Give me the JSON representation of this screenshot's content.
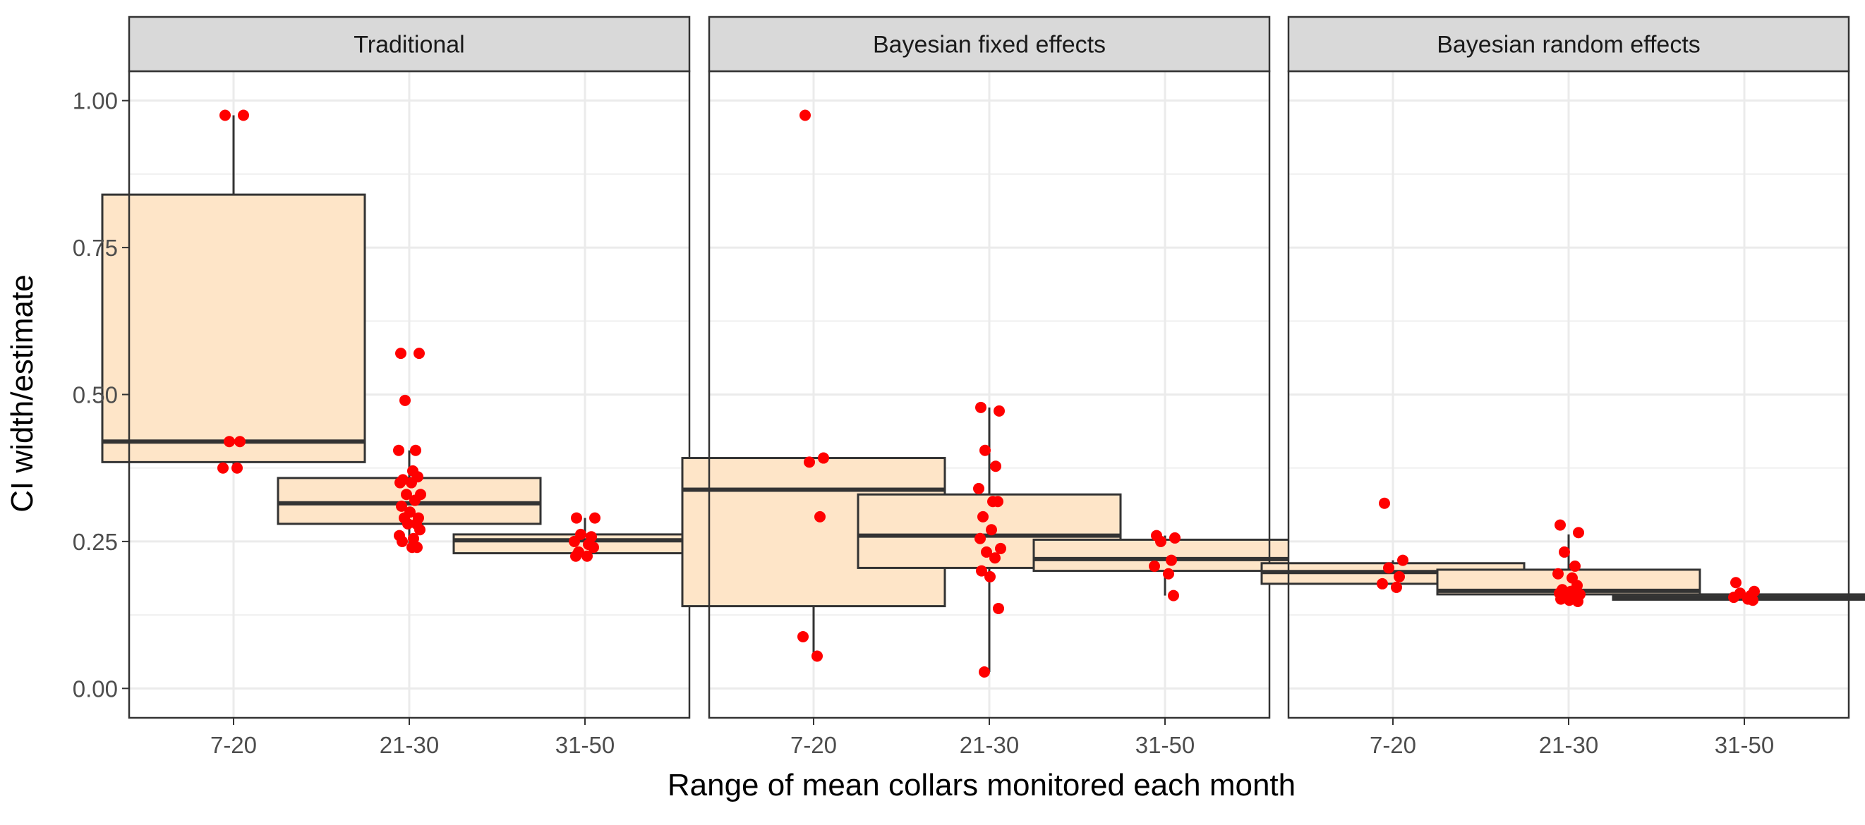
{
  "chart_data": {
    "type": "boxplot",
    "xlabel": "Range of mean collars monitored each month",
    "ylabel": "CI width/estimate",
    "ylim": [
      -0.05,
      1.05
    ],
    "y_ticks": [
      "0.00",
      "0.25",
      "0.50",
      "0.75",
      "1.00"
    ],
    "y_tick_values": [
      0,
      0.25,
      0.5,
      0.75,
      1.0
    ],
    "categories": [
      "7-20",
      "21-30",
      "31-50"
    ],
    "grid": true,
    "colors": {
      "box_fill": "#FEE5C8",
      "box_line": "#333333",
      "point": "#FF0000",
      "strip_fill": "#D9D9D9",
      "grid": "#EBEBEB"
    },
    "panels": [
      {
        "title": "Traditional",
        "boxes": [
          {
            "category": "7-20",
            "lower_whisker": 0.375,
            "q1": 0.385,
            "median": 0.42,
            "q3": 0.84,
            "upper_whisker": 0.975
          },
          {
            "category": "21-30",
            "lower_whisker": 0.24,
            "q1": 0.28,
            "median": 0.315,
            "q3": 0.358,
            "upper_whisker": 0.405
          },
          {
            "category": "31-50",
            "lower_whisker": 0.225,
            "q1": 0.23,
            "median": 0.252,
            "q3": 0.262,
            "upper_whisker": 0.29
          }
        ],
        "points": [
          {
            "category": "7-20",
            "values": [
              0.975,
              0.975,
              0.42,
              0.42,
              0.375,
              0.375
            ]
          },
          {
            "category": "21-30",
            "values": [
              0.57,
              0.57,
              0.49,
              0.405,
              0.405,
              0.37,
              0.36,
              0.355,
              0.35,
              0.35,
              0.33,
              0.33,
              0.32,
              0.31,
              0.3,
              0.29,
              0.29,
              0.28,
              0.28,
              0.27,
              0.26,
              0.255,
              0.25,
              0.24,
              0.24
            ]
          },
          {
            "category": "31-50",
            "values": [
              0.29,
              0.29,
              0.262,
              0.258,
              0.25,
              0.245,
              0.24,
              0.232,
              0.225,
              0.225
            ]
          }
        ]
      },
      {
        "title": "Bayesian fixed effects",
        "boxes": [
          {
            "category": "7-20",
            "lower_whisker": 0.055,
            "q1": 0.14,
            "median": 0.338,
            "q3": 0.392,
            "upper_whisker": 0.392
          },
          {
            "category": "21-30",
            "lower_whisker": 0.028,
            "q1": 0.205,
            "median": 0.26,
            "q3": 0.33,
            "upper_whisker": 0.478
          },
          {
            "category": "31-50",
            "lower_whisker": 0.158,
            "q1": 0.2,
            "median": 0.22,
            "q3": 0.253,
            "upper_whisker": 0.26
          }
        ],
        "points": [
          {
            "category": "7-20",
            "values": [
              0.975,
              0.392,
              0.385,
              0.292,
              0.088,
              0.055
            ]
          },
          {
            "category": "21-30",
            "values": [
              0.478,
              0.472,
              0.405,
              0.378,
              0.34,
              0.318,
              0.318,
              0.292,
              0.27,
              0.255,
              0.238,
              0.232,
              0.222,
              0.2,
              0.19,
              0.136,
              0.028
            ]
          },
          {
            "category": "31-50",
            "values": [
              0.26,
              0.256,
              0.25,
              0.218,
              0.208,
              0.195,
              0.158
            ]
          }
        ]
      },
      {
        "title": "Bayesian random effects",
        "boxes": [
          {
            "category": "7-20",
            "lower_whisker": 0.17,
            "q1": 0.178,
            "median": 0.198,
            "q3": 0.213,
            "upper_whisker": 0.218
          },
          {
            "category": "21-30",
            "lower_whisker": 0.148,
            "q1": 0.16,
            "median": 0.166,
            "q3": 0.202,
            "upper_whisker": 0.262
          },
          {
            "category": "31-50",
            "lower_whisker": 0.15,
            "q1": 0.151,
            "median": 0.155,
            "q3": 0.16,
            "upper_whisker": 0.165
          }
        ],
        "points": [
          {
            "category": "7-20",
            "values": [
              0.315,
              0.218,
              0.205,
              0.19,
              0.178,
              0.172
            ]
          },
          {
            "category": "21-30",
            "values": [
              0.278,
              0.265,
              0.232,
              0.208,
              0.195,
              0.188,
              0.175,
              0.168,
              0.165,
              0.162,
              0.16,
              0.158,
              0.155,
              0.152,
              0.15,
              0.148
            ]
          },
          {
            "category": "31-50",
            "values": [
              0.18,
              0.165,
              0.162,
              0.158,
              0.155,
              0.152,
              0.15
            ]
          }
        ]
      }
    ]
  }
}
